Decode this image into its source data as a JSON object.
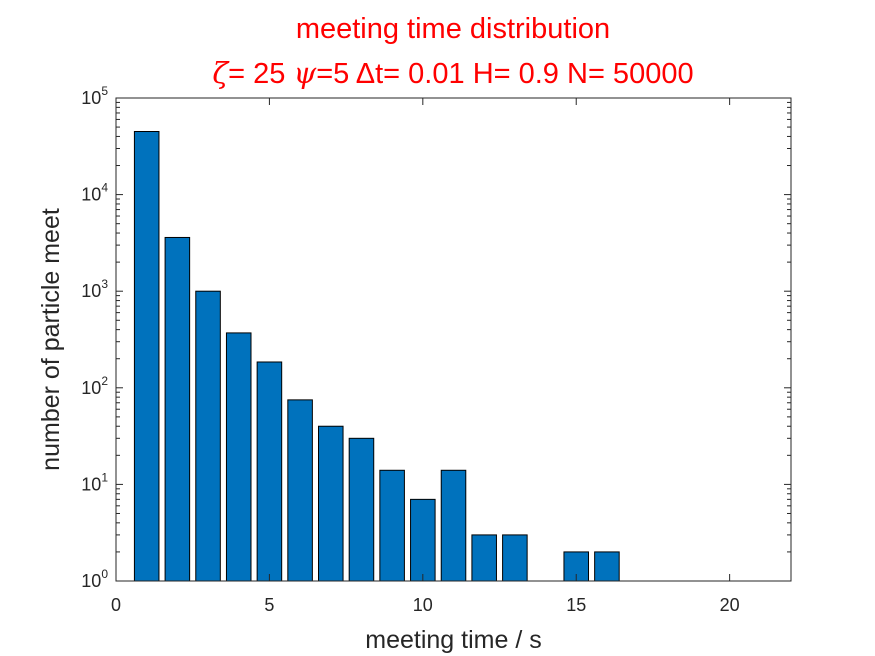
{
  "chart_data": {
    "type": "bar",
    "title": "meeting time distribution",
    "subtitle": {
      "zeta_symbol": "ζ",
      "zeta_value": "= 25",
      "psi_symbol": "ψ",
      "psi_value": "=5",
      "dt_symbol": "Δ",
      "dt_value": "t= 0.01",
      "h_text": "H= 0.9",
      "n_text": "N= 50000"
    },
    "xlabel": "meeting time / s",
    "ylabel": "number of particle meet",
    "xlim": [
      0,
      22
    ],
    "ylim": [
      1,
      100000
    ],
    "yscale": "log",
    "xticks": [
      0,
      5,
      10,
      15,
      20
    ],
    "yticks": [
      {
        "value": 1,
        "base": "10",
        "exp": "0"
      },
      {
        "value": 10,
        "base": "10",
        "exp": "1"
      },
      {
        "value": 100,
        "base": "10",
        "exp": "2"
      },
      {
        "value": 1000,
        "base": "10",
        "exp": "3"
      },
      {
        "value": 10000,
        "base": "10",
        "exp": "4"
      },
      {
        "value": 100000,
        "base": "10",
        "exp": "5"
      }
    ],
    "bar_color": "#0072bd",
    "bar_width": 0.8,
    "x": [
      1,
      2,
      3,
      4,
      5,
      6,
      7,
      8,
      9,
      10,
      11,
      12,
      13,
      14,
      15,
      16
    ],
    "values": [
      45000,
      3600,
      1000,
      370,
      185,
      75,
      40,
      30,
      14,
      7,
      14,
      3,
      3,
      0,
      2,
      2
    ],
    "grid": false
  }
}
